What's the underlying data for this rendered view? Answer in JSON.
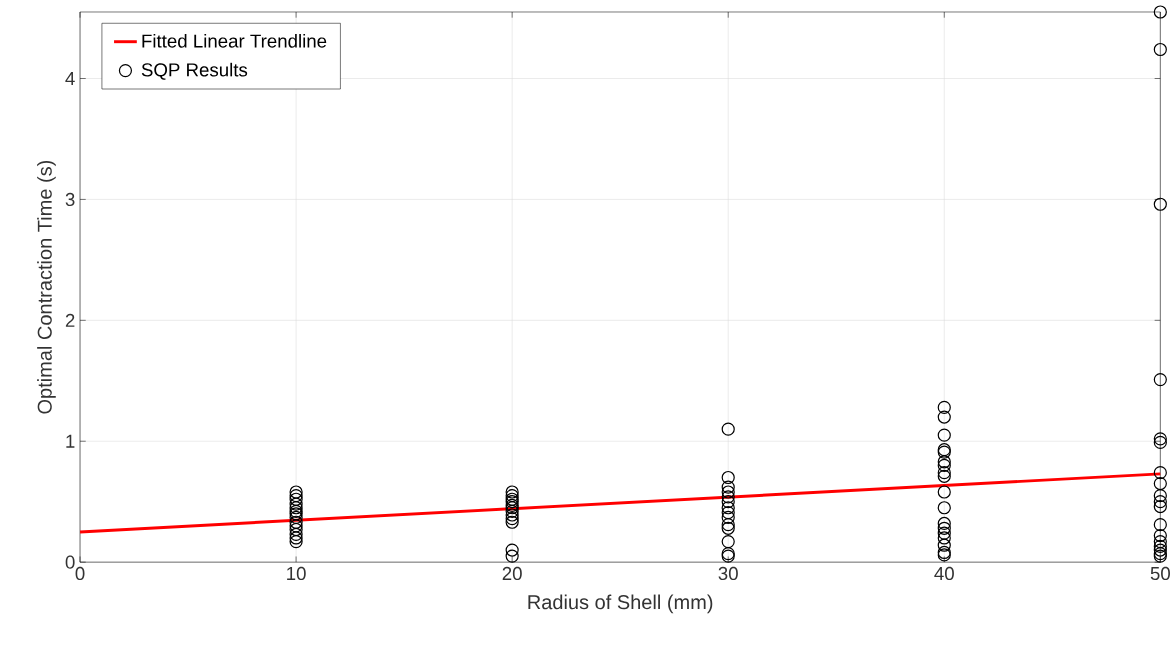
{
  "chart_data": {
    "type": "scatter",
    "xlabel": "Radius of Shell (mm)",
    "ylabel": "Optimal Contraction Time (s)",
    "xlim": [
      0,
      50
    ],
    "ylim": [
      0,
      4.55
    ],
    "xticks": [
      0,
      10,
      20,
      30,
      40,
      50
    ],
    "yticks": [
      0,
      1,
      2,
      3,
      4
    ],
    "grid": true,
    "legend": "top left",
    "series": [
      {
        "name": "Fitted Linear Trendline",
        "type": "line",
        "color": "#ff0000",
        "line_style": "solid",
        "x": [
          0,
          50
        ],
        "values": [
          0.25,
          0.73
        ]
      },
      {
        "name": "SQP Results",
        "color": "#000000",
        "marker": "circle",
        "x": [
          10,
          10,
          10,
          10,
          10,
          10,
          10,
          10,
          10,
          10,
          10,
          10,
          10,
          10,
          20,
          20,
          20,
          20,
          20,
          20,
          20,
          20,
          20,
          20,
          20,
          20,
          30,
          30,
          30,
          30,
          30,
          30,
          30,
          30,
          30,
          30,
          30,
          30,
          30,
          30,
          40,
          40,
          40,
          40,
          40,
          40,
          40,
          40,
          40,
          40,
          40,
          40,
          40,
          40,
          40,
          40,
          40,
          40,
          50,
          50,
          50,
          50,
          50,
          50,
          50,
          50,
          50,
          50,
          50,
          50,
          50,
          50,
          50,
          50,
          50,
          50
        ],
        "values": [
          0.58,
          0.55,
          0.52,
          0.48,
          0.45,
          0.42,
          0.4,
          0.37,
          0.33,
          0.3,
          0.27,
          0.23,
          0.2,
          0.17,
          0.58,
          0.55,
          0.52,
          0.5,
          0.47,
          0.45,
          0.42,
          0.39,
          0.36,
          0.33,
          0.1,
          0.05,
          1.1,
          0.7,
          0.62,
          0.58,
          0.54,
          0.5,
          0.45,
          0.41,
          0.37,
          0.31,
          0.28,
          0.17,
          0.07,
          0.05,
          1.28,
          1.2,
          1.05,
          0.93,
          0.91,
          0.83,
          0.8,
          0.74,
          0.71,
          0.58,
          0.45,
          0.32,
          0.28,
          0.24,
          0.2,
          0.14,
          0.08,
          0.06,
          4.55,
          4.24,
          2.96,
          1.51,
          1.02,
          0.99,
          0.74,
          0.65,
          0.55,
          0.5,
          0.46,
          0.31,
          0.22,
          0.17,
          0.13,
          0.1,
          0.07,
          0.05
        ]
      }
    ]
  }
}
